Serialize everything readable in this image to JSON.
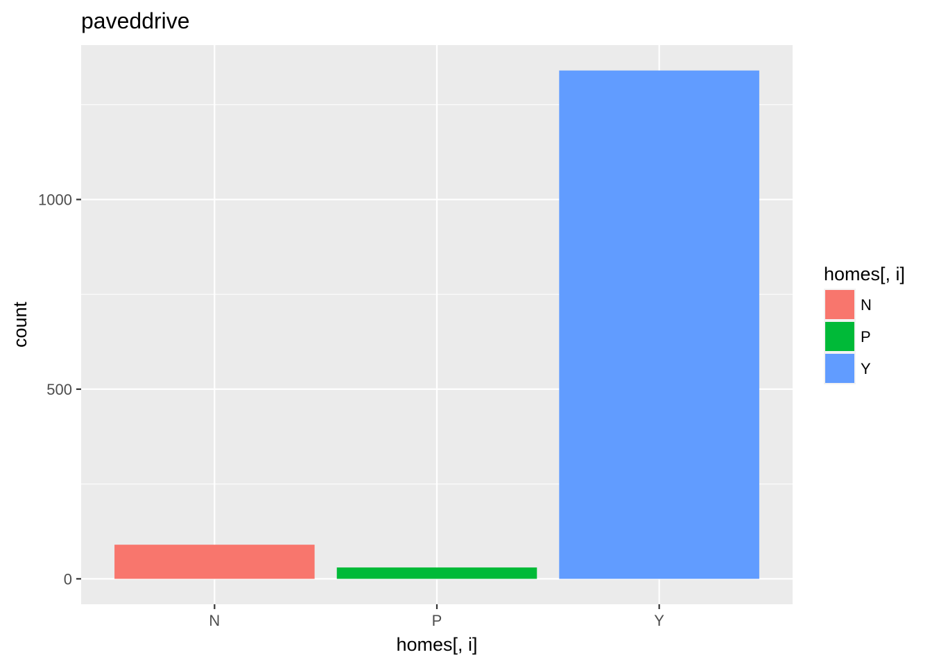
{
  "chart_data": {
    "type": "bar",
    "title": "paveddrive",
    "xlabel": "homes[, i]",
    "ylabel": "count",
    "categories": [
      "N",
      "P",
      "Y"
    ],
    "values": [
      90,
      30,
      1340
    ],
    "colors": [
      "#F8766D",
      "#00BA38",
      "#619CFF"
    ],
    "ylim": [
      -67,
      1407
    ],
    "yticks": [
      0,
      500,
      1000
    ],
    "ytick_labels": [
      "0",
      "500",
      "1000"
    ],
    "grid": true,
    "background": "#EBEBEB",
    "legend": {
      "title": "homes[, i]",
      "position": "right",
      "entries": [
        "N",
        "P",
        "Y"
      ]
    }
  }
}
